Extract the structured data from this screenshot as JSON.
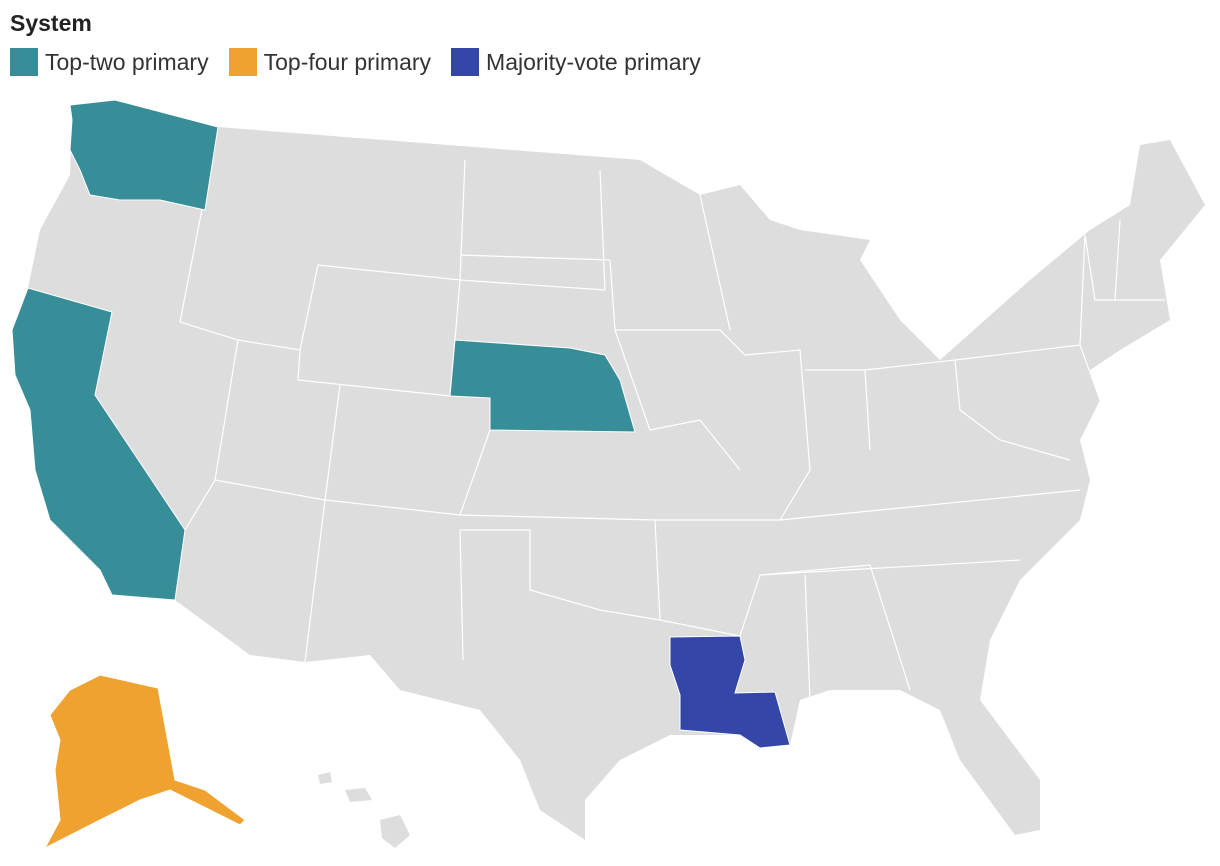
{
  "title": "System",
  "legend": {
    "items": [
      {
        "name": "Top-two primary",
        "color": "#388e98"
      },
      {
        "name": "Top-four primary",
        "color": "#f0a231"
      },
      {
        "name": "Majority-vote primary",
        "color": "#3447a8"
      }
    ]
  },
  "map": {
    "base_color": "#dddddd",
    "border_color": "#ffffff"
  }
}
